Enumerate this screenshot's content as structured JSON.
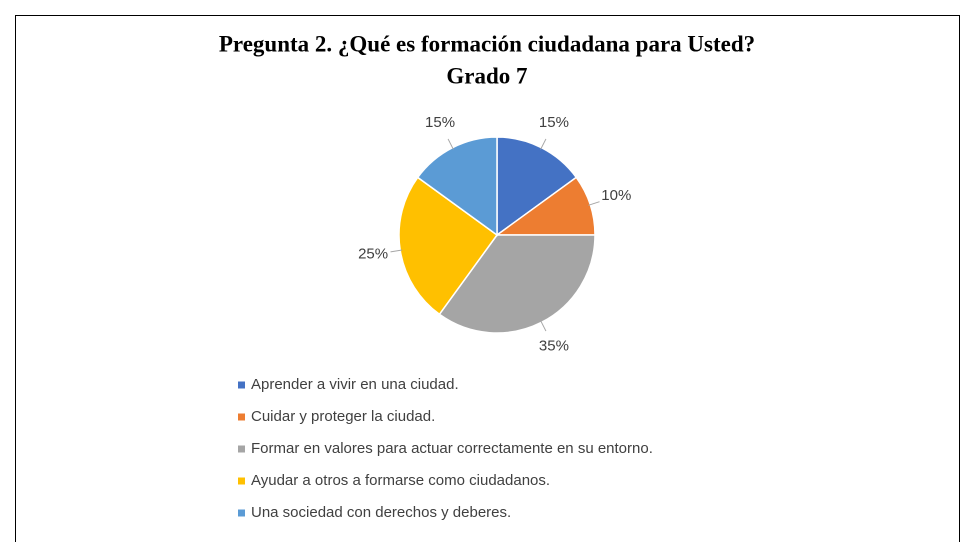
{
  "chart_data": {
    "type": "pie",
    "title": [
      "Pregunta 2. ¿Qué es formación ciudadana para Usted?",
      "Grado 7"
    ],
    "categories": [
      "Aprender a vivir en una ciudad.",
      "Cuidar y proteger la ciudad.",
      "Formar en valores para actuar correctamente en su entorno.",
      "Ayudar a otros a formarse como ciudadanos.",
      "Una sociedad con derechos y deberes."
    ],
    "values": [
      15,
      10,
      35,
      25,
      15
    ],
    "value_labels": [
      "15%",
      "10%",
      "35%",
      "25%",
      "15%"
    ],
    "colors": [
      "#4472c4",
      "#ed7d31",
      "#a5a5a5",
      "#ffc000",
      "#5b9bd5"
    ],
    "legend": "bottom"
  }
}
